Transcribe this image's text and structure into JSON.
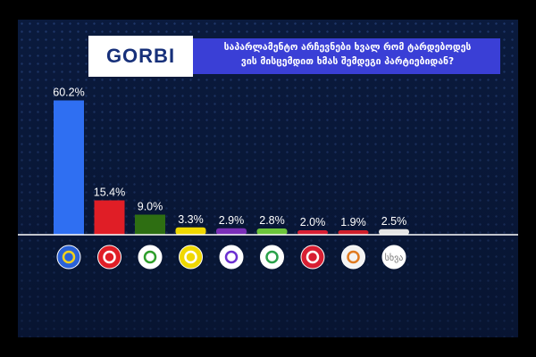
{
  "header": {
    "logo_text": "GORBI",
    "question": "საპარლამენტო არჩევნები ხვალ რომ ტარდებოდეს\nვის მისცემდით ხმას შემდეგი პარტიებიდან?"
  },
  "colors": {
    "background": "#0a1a3d",
    "header_bar": "#3a3fd6",
    "baseline": "#ffffff"
  },
  "chart_data": {
    "type": "bar",
    "categories": [
      "party-1",
      "party-2",
      "party-3",
      "party-4",
      "party-5",
      "party-6",
      "party-7",
      "party-8",
      "other"
    ],
    "values": [
      60.2,
      15.4,
      9.0,
      3.3,
      2.9,
      2.8,
      2.0,
      1.9,
      2.5
    ],
    "value_labels": [
      "60.2%",
      "15.4%",
      "9.0%",
      "3.3%",
      "2.9%",
      "2.8%",
      "2.0%",
      "1.9%",
      "2.5%"
    ],
    "bar_colors": [
      "#2f6ff2",
      "#e01e26",
      "#2e6e12",
      "#f0d800",
      "#7b2fb8",
      "#6cc53a",
      "#d81f33",
      "#cf1f2a",
      "#e4e4e4"
    ],
    "icons": [
      {
        "name": "stars-circle-icon",
        "bg": "#2a62d8",
        "fg": "#f2d21a",
        "text": ""
      },
      {
        "name": "handshake-icon",
        "bg": "#e01e26",
        "fg": "#ffffff",
        "text": ""
      },
      {
        "name": "arrow-circle-icon",
        "bg": "#ffffff",
        "fg": "#2e9e2a",
        "text": ""
      },
      {
        "name": "victory-hand-icon",
        "bg": "#f0d800",
        "fg": "#ffffff",
        "text": ""
      },
      {
        "name": "play-arrow-icon",
        "bg": "#ffffff",
        "fg": "#6a2fd0",
        "text": ""
      },
      {
        "name": "pinecone-icon",
        "bg": "#ffffff",
        "fg": "#2aa14a",
        "text": ""
      },
      {
        "name": "horse-head-icon",
        "bg": "#d81f33",
        "fg": "#ffffff",
        "text": ""
      },
      {
        "name": "lion-emblem-icon",
        "bg": "#f3f3f3",
        "fg": "#e07a20",
        "text": ""
      },
      {
        "name": "other-icon",
        "bg": "#ffffff",
        "fg": "#777777",
        "text": "სხვა"
      }
    ],
    "ylim": [
      0,
      62
    ],
    "grid": false
  }
}
